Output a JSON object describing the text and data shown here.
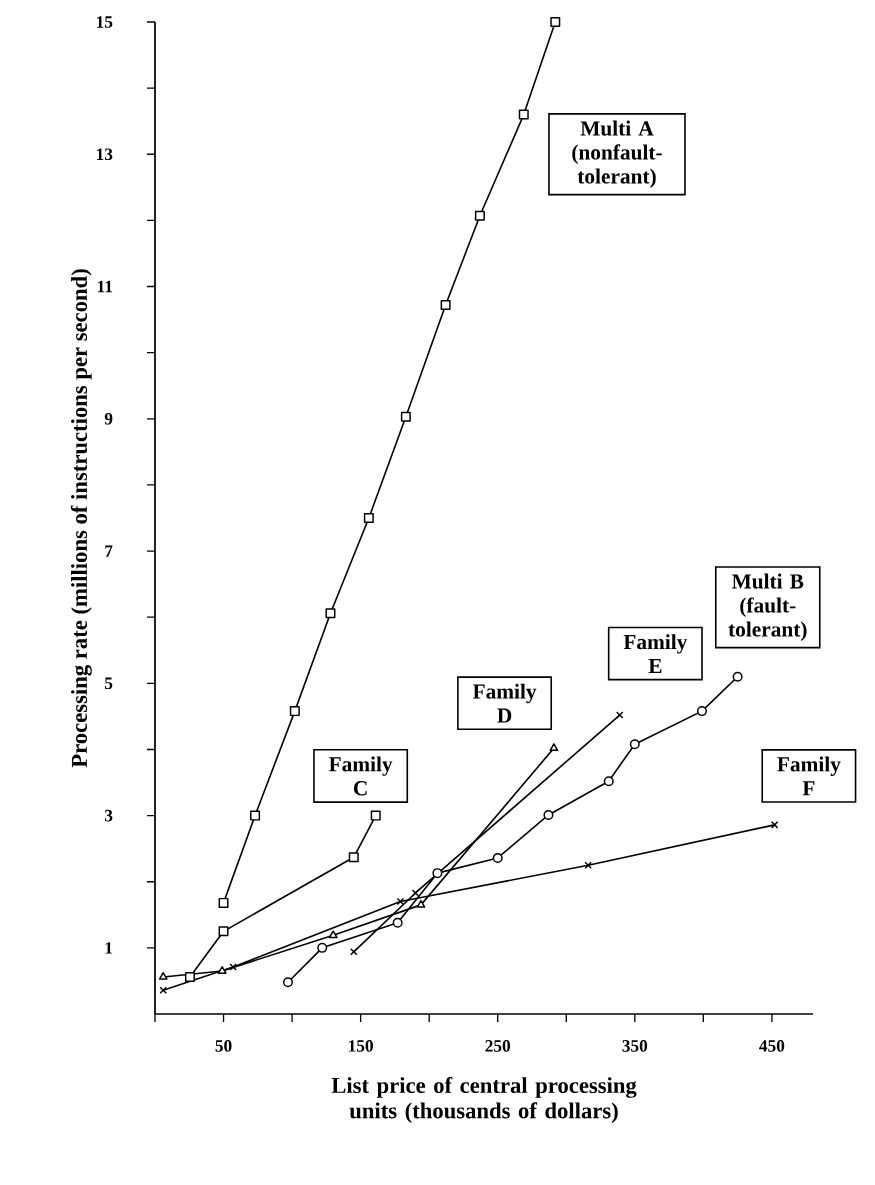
{
  "chart_data": {
    "type": "line",
    "xlabel": "List price of central processing units (thousands of dollars)",
    "ylabel": "Processing rate (millions of instructions per second)",
    "xlim": [
      0,
      480
    ],
    "ylim": [
      0,
      15
    ],
    "xticks": [
      {
        "value": 0,
        "label": null
      },
      50,
      {
        "value": 100,
        "label": null
      },
      150,
      {
        "value": 200,
        "label": null
      },
      250,
      {
        "value": 300,
        "label": null
      },
      350,
      {
        "value": 400,
        "label": null
      },
      450
    ],
    "yticks": [
      1,
      {
        "value": 2,
        "label": null
      },
      3,
      {
        "value": 4,
        "label": null
      },
      5,
      {
        "value": 6,
        "label": null
      },
      7,
      {
        "value": 8,
        "label": null
      },
      9,
      {
        "value": 10,
        "label": null
      },
      11,
      {
        "value": 12,
        "label": null
      },
      13,
      {
        "value": 14,
        "label": null
      },
      15
    ],
    "grid": false,
    "line_style": "solid",
    "series": [
      {
        "name": "Multi A (nonfault-tolerant)",
        "color": "#000000",
        "marker": "square",
        "x": [
          50,
          73,
          102,
          128,
          156,
          183,
          212,
          237,
          269,
          292
        ],
        "values": [
          1.68,
          3.0,
          4.58,
          6.06,
          7.5,
          9.03,
          10.72,
          12.07,
          13.6,
          15.0
        ]
      },
      {
        "name": "Multi B (fault-tolerant)",
        "color": "#000000",
        "marker": "circle",
        "x": [
          97,
          122,
          177,
          206,
          250,
          287,
          331,
          350,
          399,
          425
        ],
        "values": [
          0.48,
          1.0,
          1.38,
          2.13,
          2.36,
          3.01,
          3.52,
          4.08,
          4.58,
          5.1
        ]
      },
      {
        "name": "Family C",
        "color": "#000000",
        "marker": "square",
        "x": [
          25.5,
          50,
          145,
          161
        ],
        "values": [
          0.56,
          1.25,
          2.37,
          3.0
        ]
      },
      {
        "name": "Family D",
        "color": "#000000",
        "marker": "triangle",
        "x": [
          6,
          49,
          130,
          194,
          291
        ],
        "values": [
          0.56,
          0.65,
          1.19,
          1.65,
          4.02
        ]
      },
      {
        "name": "Family E",
        "color": "#000000",
        "marker": "cross",
        "x": [
          145,
          190,
          339
        ],
        "values": [
          0.94,
          1.83,
          4.52
        ]
      },
      {
        "name": "Family F",
        "color": "#000000",
        "marker": "cross",
        "x": [
          6,
          57,
          179,
          316,
          452
        ],
        "values": [
          0.36,
          0.71,
          1.7,
          2.25,
          2.86
        ]
      }
    ]
  }
}
